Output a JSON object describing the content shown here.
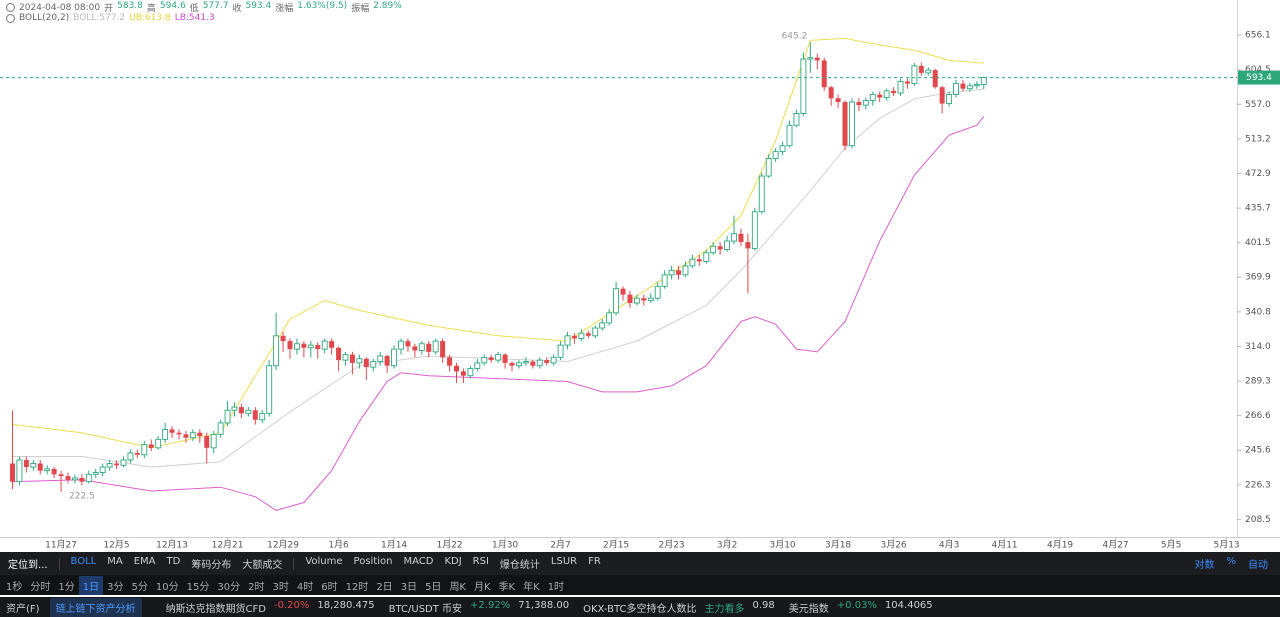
{
  "header": {
    "datetime": "2024-04-08 08:00",
    "stats": [
      {
        "label": "开",
        "value": "583.8"
      },
      {
        "label": "高",
        "value": "594.6"
      },
      {
        "label": "低",
        "value": "577.7"
      },
      {
        "label": "收",
        "value": "593.4"
      },
      {
        "label": "涨幅",
        "value": "1.63%(9.5)"
      },
      {
        "label": "振幅",
        "value": "2.89%"
      }
    ],
    "indicator": "BOLL(20,2)",
    "indicator_values": [
      {
        "text": "BOLL:577.2",
        "color": "#bbbbbb"
      },
      {
        "text": "UB:613.8",
        "color": "#e8d23a"
      },
      {
        "text": "LB:541.3",
        "color": "#d64bc4"
      }
    ]
  },
  "chart_data": {
    "type": "candlestick",
    "log_scale": true,
    "grid": false,
    "xlim": [
      -1.8,
      176.5
    ],
    "ylim": [
      200,
      713
    ],
    "yticks": [
      208.5,
      226.3,
      245.6,
      266.6,
      289.3,
      {
        "value": 314,
        "label": "314.0"
      },
      340.8,
      369.9,
      401.5,
      435.7,
      472.9,
      513.2,
      {
        "value": 557,
        "label": "557.0"
      },
      604.5,
      656.1
    ],
    "xticks": [
      {
        "value": 7,
        "label": "11月27"
      },
      {
        "value": 15,
        "label": "12月5"
      },
      {
        "value": 23,
        "label": "12月13"
      },
      {
        "value": 31,
        "label": "12月21"
      },
      {
        "value": 39,
        "label": "12月29"
      },
      {
        "value": 47,
        "label": "1月6"
      },
      {
        "value": 55,
        "label": "1月14"
      },
      {
        "value": 63,
        "label": "1月22"
      },
      {
        "value": 71,
        "label": "1月30"
      },
      {
        "value": 79,
        "label": "2月7"
      },
      {
        "value": 87,
        "label": "2月15"
      },
      {
        "value": 95,
        "label": "2月23"
      },
      {
        "value": 103,
        "label": "3月2"
      },
      {
        "value": 111,
        "label": "3月10"
      },
      {
        "value": 119,
        "label": "3月18"
      },
      {
        "value": 127,
        "label": "3月26"
      },
      {
        "value": 135,
        "label": "4月3"
      },
      {
        "value": 143,
        "label": "4月11"
      },
      {
        "value": 151,
        "label": "4月19"
      },
      {
        "value": 159,
        "label": "4月27"
      },
      {
        "value": 167,
        "label": "5月5"
      },
      {
        "value": 175,
        "label": "5月13"
      }
    ],
    "up_color": "#2ea87b",
    "down_color": "#e0484d",
    "candles": {
      "open": [
        238,
        228,
        240,
        236,
        238,
        234,
        235,
        232,
        231,
        229,
        230,
        228,
        232,
        233,
        236,
        238,
        237,
        240,
        244,
        243,
        249,
        247,
        252,
        258,
        256,
        255,
        253,
        256,
        254,
        247,
        255,
        262,
        270,
        272,
        268,
        270,
        264,
        268,
        300,
        322,
        318,
        312,
        316,
        313,
        315,
        312,
        318,
        313,
        304,
        308,
        302,
        305,
        299,
        303,
        307,
        300,
        312,
        318,
        314,
        311,
        316,
        310,
        318,
        306,
        300,
        296,
        293,
        298,
        302,
        306,
        304,
        308,
        302,
        300,
        302,
        303,
        300,
        304,
        302,
        306,
        315,
        322,
        320,
        324,
        322,
        328,
        332,
        340,
        360,
        355,
        348,
        352,
        350,
        352,
        362,
        372,
        376,
        372,
        380,
        386,
        384,
        392,
        398,
        395,
        403,
        410,
        402,
        396,
        432,
        470,
        490,
        498,
        505,
        530,
        545,
        620,
        622,
        618,
        580,
        565,
        560,
        505,
        560,
        556,
        562,
        570,
        566,
        575,
        572,
        588,
        585,
        610,
        600,
        604,
        580,
        558,
        570,
        585,
        578,
        582,
        583.8
      ],
      "high": [
        270,
        242,
        242,
        240,
        240,
        237,
        236,
        234,
        233,
        232,
        232,
        234,
        235,
        238,
        240,
        240,
        242,
        246,
        246,
        251,
        252,
        254,
        262,
        260,
        258,
        257,
        258,
        258,
        256,
        257,
        264,
        276,
        275,
        274,
        272,
        272,
        270,
        304,
        340,
        325,
        320,
        320,
        318,
        318,
        317,
        320,
        320,
        314,
        310,
        310,
        308,
        306,
        305,
        310,
        308,
        315,
        320,
        320,
        316,
        318,
        318,
        320,
        320,
        308,
        302,
        298,
        300,
        305,
        308,
        308,
        310,
        309,
        303,
        304,
        306,
        304,
        306,
        306,
        308,
        318,
        325,
        324,
        327,
        326,
        330,
        335,
        343,
        366,
        362,
        358,
        355,
        355,
        356,
        366,
        376,
        380,
        380,
        384,
        390,
        390,
        395,
        402,
        402,
        408,
        428,
        415,
        410,
        436,
        474,
        495,
        502,
        510,
        536,
        550,
        630,
        645.2,
        628,
        622,
        582,
        570,
        562,
        565,
        565,
        566,
        574,
        574,
        578,
        580,
        592,
        592,
        614,
        615,
        608,
        606,
        582,
        574,
        590,
        590,
        586,
        588,
        594.6
      ],
      "low": [
        224,
        226,
        233,
        234,
        232,
        232,
        230,
        222.5,
        227,
        227,
        226,
        227,
        230,
        231,
        234,
        235,
        236,
        238,
        241,
        241,
        245,
        246,
        250,
        253,
        252,
        250,
        251,
        250,
        238,
        244,
        253,
        260,
        266,
        265,
        266,
        261,
        262,
        266,
        297,
        310,
        305,
        308,
        306,
        306,
        305,
        309,
        308,
        296,
        300,
        294,
        298,
        290,
        296,
        300,
        295,
        298,
        308,
        310,
        306,
        308,
        306,
        308,
        302,
        296,
        288,
        288,
        291,
        296,
        300,
        302,
        302,
        298,
        296,
        298,
        300,
        298,
        298,
        300,
        300,
        304,
        312,
        316,
        318,
        320,
        320,
        326,
        330,
        338,
        350,
        344,
        346,
        346,
        348,
        350,
        360,
        368,
        368,
        370,
        378,
        380,
        382,
        390,
        390,
        393,
        400,
        398,
        356,
        394,
        430,
        468,
        486,
        494,
        503,
        528,
        542,
        600,
        605,
        575,
        555,
        552,
        500,
        502,
        548,
        550,
        555,
        560,
        562,
        568,
        568,
        578,
        582,
        596,
        596,
        578,
        545,
        554,
        566,
        574,
        574,
        578,
        577.7
      ],
      "close": [
        228,
        240,
        236,
        238,
        234,
        235,
        232,
        231,
        229,
        230,
        228,
        232,
        233,
        236,
        238,
        237,
        240,
        244,
        243,
        249,
        247,
        252,
        258,
        256,
        255,
        253,
        256,
        254,
        247,
        255,
        262,
        270,
        272,
        268,
        270,
        264,
        268,
        300,
        322,
        318,
        312,
        316,
        313,
        315,
        312,
        318,
        313,
        304,
        308,
        302,
        305,
        299,
        303,
        307,
        300,
        312,
        318,
        314,
        311,
        316,
        310,
        318,
        306,
        300,
        296,
        293,
        298,
        302,
        306,
        304,
        308,
        302,
        300,
        302,
        303,
        300,
        304,
        302,
        306,
        315,
        322,
        320,
        324,
        322,
        328,
        332,
        340,
        360,
        355,
        348,
        352,
        350,
        352,
        362,
        372,
        376,
        372,
        380,
        386,
        384,
        392,
        398,
        395,
        403,
        410,
        402,
        396,
        432,
        470,
        490,
        498,
        505,
        530,
        545,
        620,
        622,
        618,
        580,
        565,
        560,
        505,
        560,
        556,
        562,
        570,
        566,
        575,
        572,
        588,
        585,
        610,
        600,
        604,
        580,
        558,
        570,
        585,
        578,
        582,
        583.8,
        593.4
      ]
    },
    "series": [
      {
        "color": "#f0dc50",
        "x": [
          0,
          10,
          20,
          30,
          40,
          45,
          50,
          60,
          70,
          80,
          90,
          100,
          105,
          110,
          115,
          120,
          125,
          130,
          135,
          140
        ],
        "values": [
          261,
          256,
          247,
          256,
          335,
          350,
          342,
          330,
          322,
          318,
          354,
          394,
          428,
          511,
          648,
          651,
          641,
          633,
          618,
          613.8
        ]
      },
      {
        "color": "#cfcfcf",
        "x": [
          0,
          10,
          20,
          30,
          40,
          50,
          60,
          70,
          80,
          90,
          100,
          105,
          110,
          115,
          120,
          125,
          130,
          135,
          140
        ],
        "values": [
          242,
          242,
          236,
          239,
          269,
          300,
          307,
          305,
          303,
          318,
          346,
          376,
          413,
          454,
          502,
          539,
          564,
          573,
          577.2
        ]
      },
      {
        "color": "#dd5fcf",
        "x": [
          0,
          10,
          20,
          30,
          35,
          38,
          42,
          46,
          50,
          54,
          56,
          60,
          70,
          80,
          85,
          90,
          95,
          100,
          105,
          107,
          110,
          113,
          116,
          120,
          125,
          130,
          135,
          137,
          139,
          140
        ],
        "values": [
          228,
          229,
          223,
          225,
          220,
          213,
          217,
          234,
          263,
          289,
          295,
          293,
          291,
          289,
          282,
          282,
          286,
          300,
          333,
          337,
          331,
          312,
          310,
          333,
          403,
          471,
          518,
          524,
          530,
          541.3
        ]
      }
    ],
    "annotations": [
      {
        "x": 115,
        "value": 645.2
      },
      {
        "x": 7,
        "value": 222.5
      }
    ],
    "last_price_color": "#2ea87b"
  },
  "toolbar": {
    "locate": "定位到...",
    "indicators": [
      "BOLL",
      "MA",
      "EMA",
      "TD",
      "筹码分布",
      "大额成交"
    ],
    "sub_indicators": [
      "Volume",
      "Position",
      "MACD",
      "KDJ",
      "RSI",
      "爆仓统计",
      "LSUR",
      "FR"
    ],
    "right": [
      "对数",
      "%",
      "自动"
    ],
    "periods": [
      "1秒",
      "分时",
      "1分",
      "1日",
      "3分",
      "5分",
      "10分",
      "15分",
      "30分",
      "2时",
      "3时",
      "4时",
      "6时",
      "12时",
      "2日",
      "3日",
      "5日",
      "周K",
      "月K",
      "季K",
      "年K",
      "1时"
    ],
    "selected_period": 3
  },
  "footer": {
    "assets": "资产(F)",
    "analysis": "链上链下资产分析",
    "tickers": [
      {
        "name": "纳斯达克指数期货CFD",
        "change": "-0.20%",
        "price": "18,280.475",
        "color": "#e0484d"
      },
      {
        "name": "BTC/USDT 币安",
        "change": "+2.92%",
        "price": "71,388.00",
        "color": "#2ea87b"
      },
      {
        "name": "OKX-BTC多空持仓人数比",
        "change": "主力看多",
        "price": "0.98",
        "color": "#2ea87b"
      },
      {
        "name": "美元指数",
        "change": "+0.03%",
        "price": "104.4065",
        "color": "#2ea87b"
      }
    ]
  }
}
